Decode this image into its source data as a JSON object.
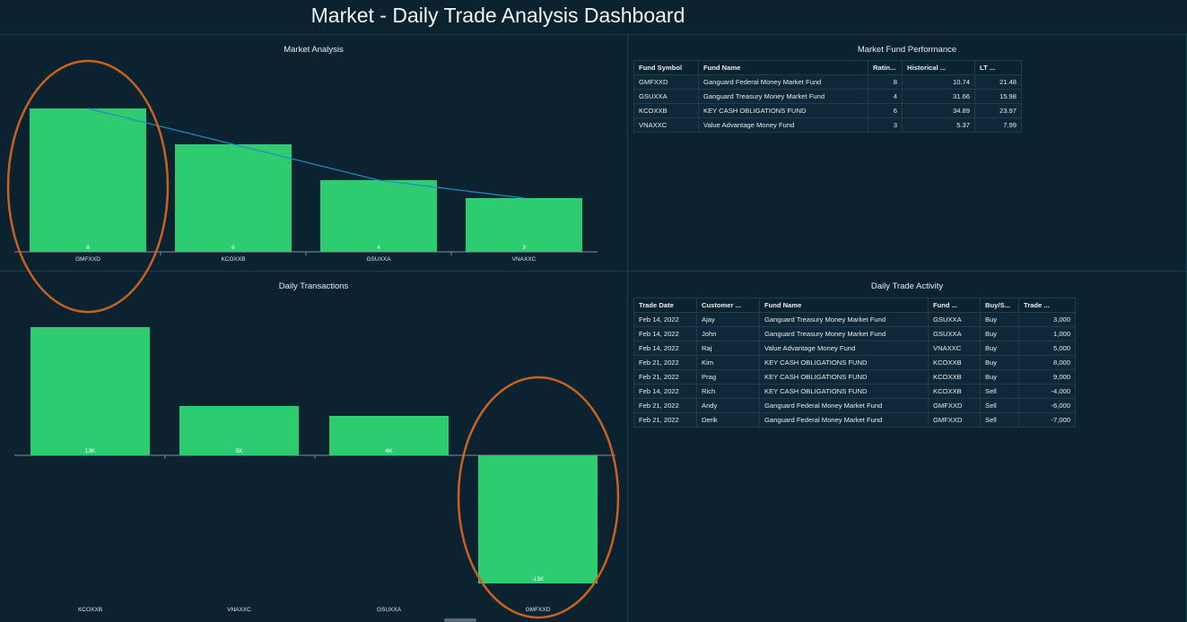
{
  "title": "Market - Daily Trade Analysis Dashboard",
  "market_analysis": {
    "title": "Market Analysis"
  },
  "daily_transactions": {
    "title": "Daily Transactions"
  },
  "fund_performance": {
    "title": "Market Fund Performance",
    "columns": [
      "Fund Symbol",
      "Fund Name",
      "Ratin...",
      "Historical ...",
      "LT ..."
    ],
    "rows": [
      [
        "GMFXXD",
        "Ganguard Federal Money Market Fund",
        "8",
        "10.74",
        "21.48"
      ],
      [
        "GSUXXA",
        "Ganguard Treasury Money Market Fund",
        "4",
        "31.66",
        "15.98"
      ],
      [
        "KCOXXB",
        "KEY CASH OBLIGATIONS FUND",
        "6",
        "34.89",
        "23.97"
      ],
      [
        "VNAXXC",
        "Value Advantage Money Fund",
        "3",
        "5.37",
        "7.99"
      ]
    ]
  },
  "trade_activity": {
    "title": "Daily Trade Activity",
    "columns": [
      "Trade Date",
      "Customer ...",
      "Fund Name",
      "Fund ...",
      "Buy/S...",
      "Trade ..."
    ],
    "rows": [
      [
        "Feb 14, 2022",
        "Ajay",
        "Ganguard Treasury Money Market Fund",
        "GSUXXA",
        "Buy",
        "3,000"
      ],
      [
        "Feb 14, 2022",
        "John",
        "Ganguard Treasury Money Market Fund",
        "GSUXXA",
        "Buy",
        "1,000"
      ],
      [
        "Feb 14, 2022",
        "Raj",
        "Value Advantage Money Fund",
        "VNAXXC",
        "Buy",
        "5,000"
      ],
      [
        "Feb 21, 2022",
        "Kim",
        "KEY CASH OBLIGATIONS FUND",
        "KCOXXB",
        "Buy",
        "8,000"
      ],
      [
        "Feb 21, 2022",
        "Prag",
        "KEY CASH OBLIGATIONS FUND",
        "KCOXXB",
        "Buy",
        "9,000"
      ],
      [
        "Feb 14, 2022",
        "Rich",
        "KEY CASH OBLIGATIONS FUND",
        "KCOXXB",
        "Sell",
        "-4,000"
      ],
      [
        "Feb 21, 2022",
        "Andy",
        "Ganguard Federal Money Market Fund",
        "GMFXXD",
        "Sell",
        "-6,000"
      ],
      [
        "Feb 21, 2022",
        "Derik",
        "Ganguard Federal Money Market Fund",
        "GMFXXD",
        "Sell",
        "-7,000"
      ]
    ]
  },
  "colors": {
    "bar": "#2ecc71",
    "line": "#1f8fbd",
    "highlight": "#c8621e",
    "background": "#0b2331"
  },
  "chart_data": [
    {
      "type": "bar",
      "title": "Market Analysis",
      "categories": [
        "GMFXXD",
        "KCOXXB",
        "GSUXXA",
        "VNAXXC"
      ],
      "values": [
        8,
        6,
        4,
        3
      ],
      "data_labels": [
        "8",
        "6",
        "4",
        "3"
      ],
      "overlay": "line",
      "ylim": [
        0,
        8
      ],
      "highlighted": "GMFXXD"
    },
    {
      "type": "bar",
      "title": "Daily Transactions",
      "categories": [
        "KCOXXB",
        "VNAXXC",
        "GSUXXA",
        "GMFXXD"
      ],
      "values": [
        13000,
        5000,
        4000,
        -13000
      ],
      "data_labels": [
        "13K",
        "5K",
        "4K",
        "-13K"
      ],
      "ylim": [
        -13000,
        13000
      ],
      "highlighted": "GMFXXD"
    }
  ]
}
